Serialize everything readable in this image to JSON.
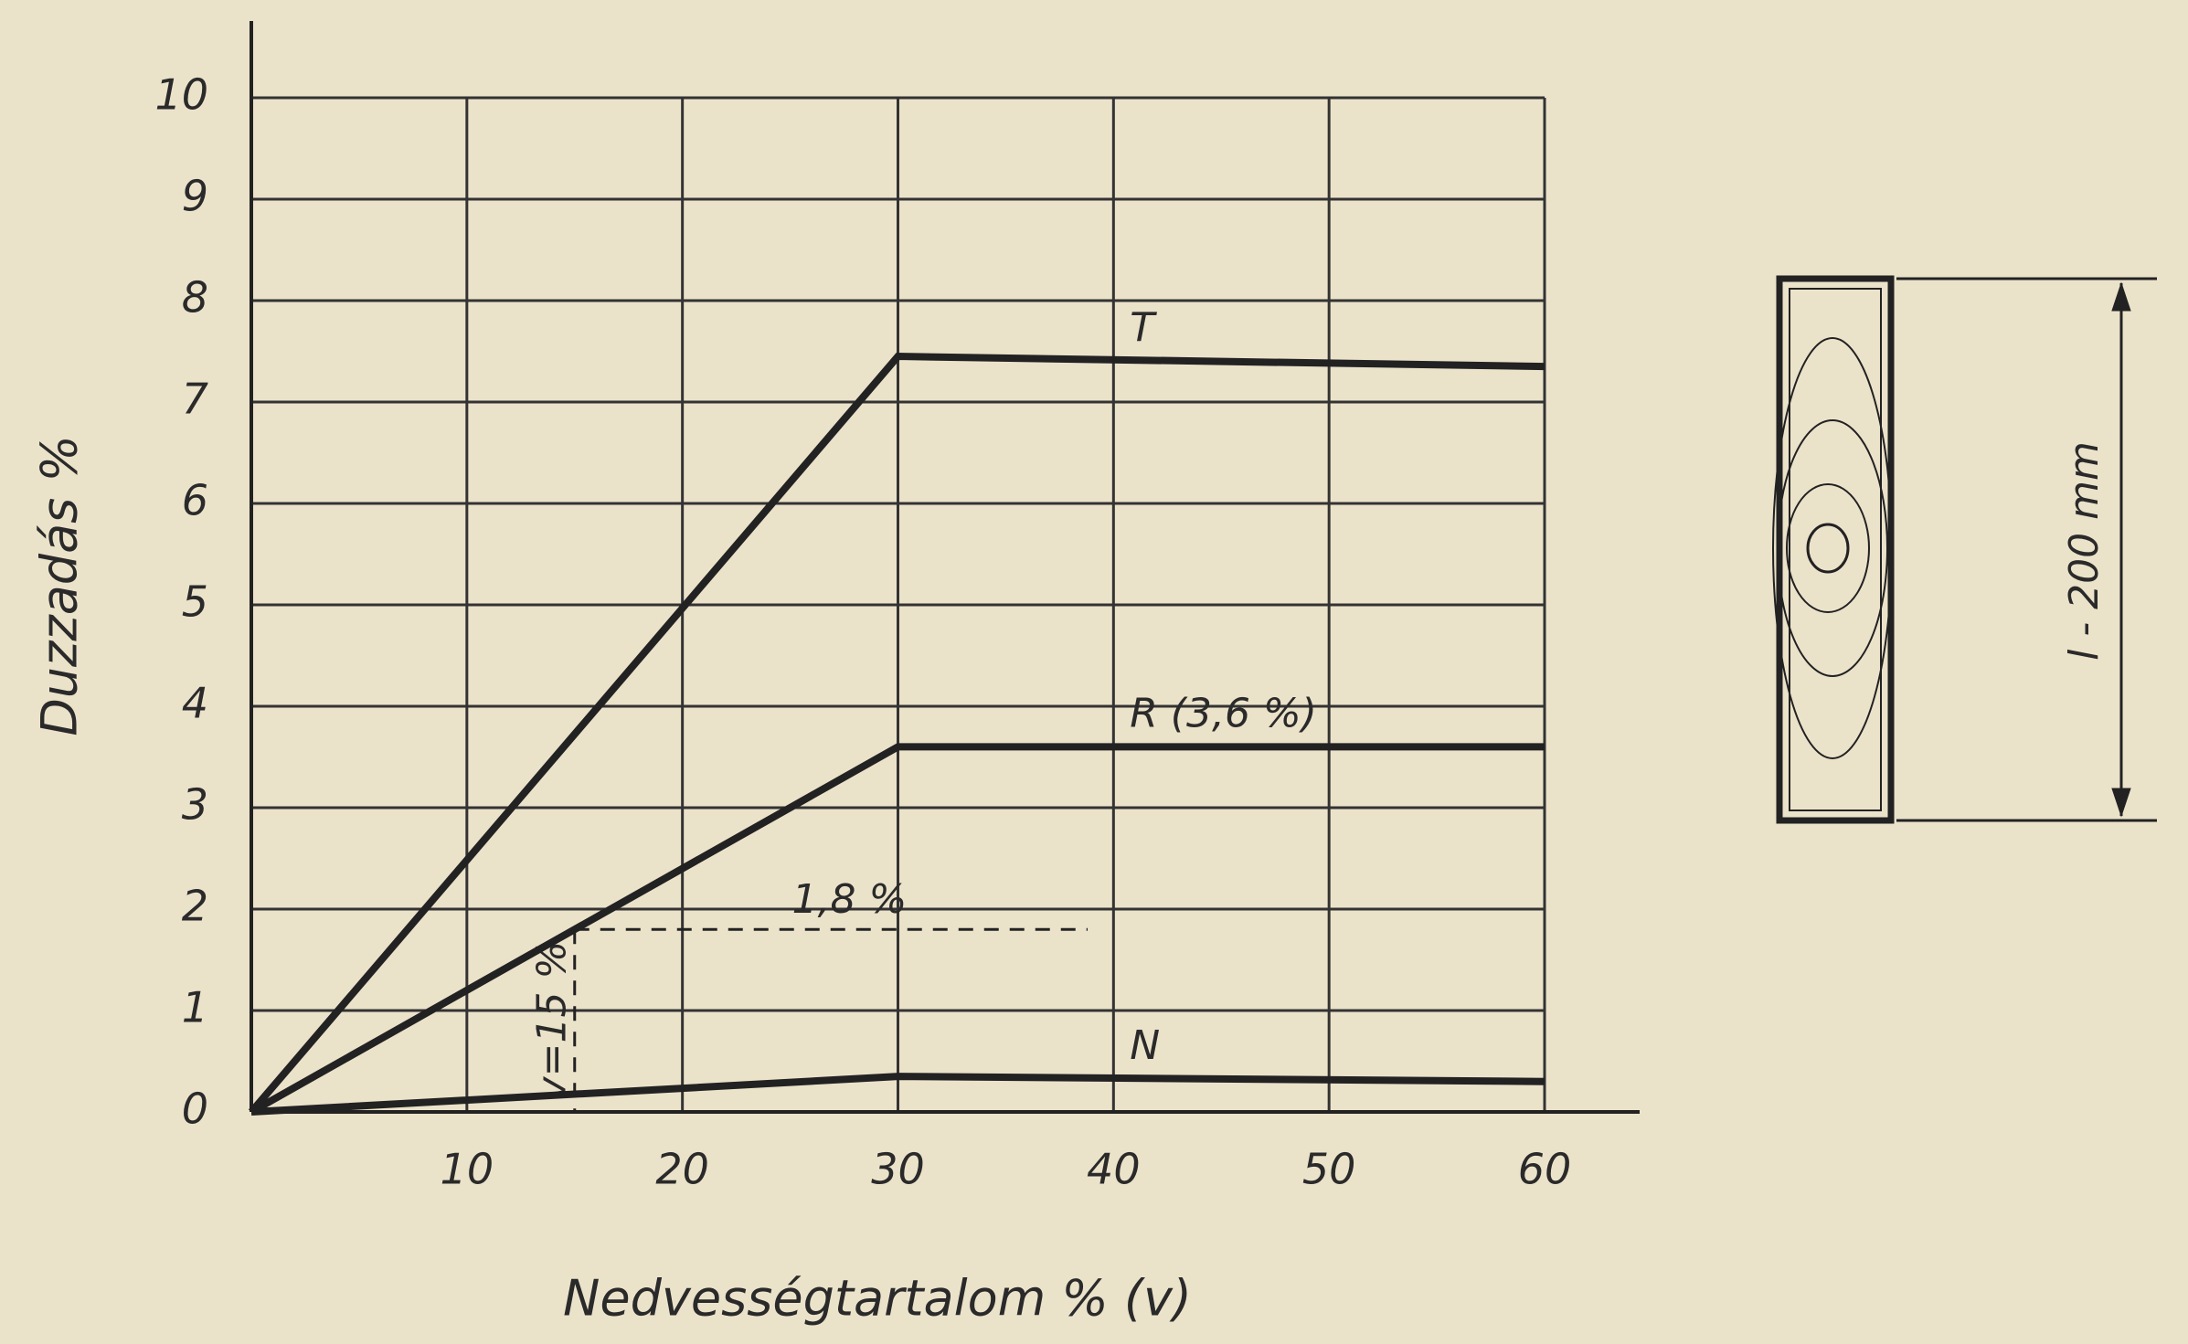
{
  "chart_data": {
    "type": "line",
    "y_label": "Duzzadás %",
    "x_label": "Nedvességtartalom % (v)",
    "xlim": [
      0,
      60
    ],
    "ylim": [
      0,
      10
    ],
    "xticks": [
      10,
      20,
      30,
      40,
      50,
      60
    ],
    "yticks": [
      0,
      1,
      2,
      3,
      4,
      5,
      6,
      7,
      8,
      9,
      10
    ],
    "grid": true,
    "series": [
      {
        "name": "T",
        "color": "#222222",
        "x": [
          0,
          30,
          60
        ],
        "values": [
          0,
          7.45,
          7.35
        ]
      },
      {
        "name": "R (3,6 %)",
        "color": "#222222",
        "x": [
          0,
          30,
          60
        ],
        "values": [
          0,
          3.6,
          3.6
        ]
      },
      {
        "name": "N",
        "color": "#222222",
        "x": [
          0,
          30,
          60
        ],
        "values": [
          0,
          0.35,
          0.3
        ]
      }
    ],
    "reference": {
      "x": 15,
      "y": 1.8,
      "x_label": "v=15 %",
      "y_label": "1,8 %"
    },
    "specimen_label": "l - 200 mm"
  }
}
